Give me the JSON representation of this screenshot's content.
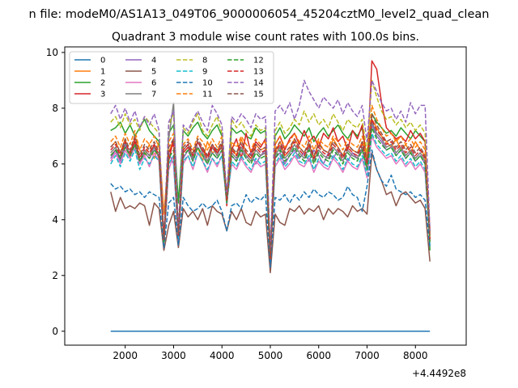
{
  "chart_data": {
    "type": "line",
    "suptitle": "n file: modeM0/AS1A13_049T06_9000006054_45204cztM0_level2_quad_clean",
    "title": "Quadrant 3 module wise count rates with 100.0s bins.",
    "xlabel": "",
    "ylabel": "",
    "x_offset_label": "+4.4492e8",
    "xlim": [
      750,
      9050
    ],
    "ylim": [
      -0.5,
      10.2
    ],
    "x_ticks": [
      2000,
      3000,
      4000,
      5000,
      6000,
      7000,
      8000
    ],
    "x_tick_labels": [
      "2000",
      "3000",
      "4000",
      "5000",
      "6000",
      "7000",
      "8000"
    ],
    "y_ticks": [
      0,
      2,
      4,
      6,
      8,
      10
    ],
    "y_tick_labels": [
      "0",
      "2",
      "4",
      "6",
      "8",
      "10"
    ],
    "grid": false,
    "legend_position": "top-left",
    "legend_columns": 4,
    "x_start": 1700,
    "x_step": 100,
    "series": [
      {
        "name": "0",
        "color": "#1f77b4",
        "dash": "solid",
        "values": [
          0,
          0,
          0,
          0,
          0,
          0,
          0,
          0,
          0,
          0,
          0,
          0,
          0,
          0,
          0,
          0,
          0,
          0,
          0,
          0,
          0,
          0,
          0,
          0,
          0,
          0,
          0,
          0,
          0,
          0,
          0,
          0,
          0,
          0,
          0,
          0,
          0,
          0,
          0,
          0,
          0,
          0,
          0,
          0,
          0,
          0,
          0,
          0,
          0,
          0,
          0,
          0,
          0,
          0,
          0,
          0,
          0,
          0,
          0,
          0,
          0,
          0,
          0,
          0,
          0,
          0,
          0
        ]
      },
      {
        "name": "1",
        "color": "#ff7f0e",
        "dash": "solid",
        "values": [
          6.6,
          6.8,
          6.4,
          6.9,
          6.2,
          7.0,
          6.5,
          6.3,
          6.7,
          6.2,
          6.8,
          4.2,
          6.4,
          6.9,
          3.6,
          6.5,
          6.7,
          6.3,
          6.6,
          6.1,
          6.8,
          6.4,
          6.5,
          6.7,
          4.9,
          6.6,
          6.3,
          6.9,
          6.4,
          6.2,
          6.7,
          6.5,
          6.6,
          2.6,
          6.4,
          6.8,
          6.3,
          6.5,
          6.9,
          6.6,
          6.4,
          6.7,
          6.2,
          6.8,
          6.5,
          6.4,
          6.9,
          6.6,
          6.3,
          6.7,
          6.5,
          6.4,
          6.8,
          6.2,
          7.6,
          7.3,
          7.0,
          6.8,
          6.6,
          6.9,
          6.5,
          6.7,
          6.4,
          6.8,
          6.5,
          6.3,
          3.4
        ]
      },
      {
        "name": "2",
        "color": "#2ca02c",
        "dash": "solid",
        "values": [
          7.2,
          7.3,
          7.5,
          7.1,
          7.4,
          7.0,
          7.3,
          7.6,
          7.2,
          7.0,
          6.8,
          3.2,
          7.1,
          7.4,
          4.6,
          7.2,
          7.0,
          7.3,
          7.5,
          7.1,
          6.9,
          7.2,
          7.4,
          7.0,
          4.7,
          7.3,
          7.1,
          7.2,
          7.0,
          6.9,
          7.3,
          7.1,
          7.2,
          2.8,
          7.0,
          7.3,
          6.9,
          7.1,
          7.4,
          7.2,
          7.0,
          7.3,
          6.8,
          7.1,
          7.3,
          7.0,
          7.2,
          7.4,
          7.1,
          6.9,
          7.2,
          7.0,
          7.3,
          6.1,
          7.8,
          7.5,
          7.3,
          7.1,
          7.2,
          7.0,
          7.3,
          7.1,
          6.9,
          7.2,
          7.0,
          6.8,
          2.9
        ]
      },
      {
        "name": "3",
        "color": "#d62728",
        "dash": "solid",
        "values": [
          6.3,
          6.5,
          6.2,
          6.6,
          6.4,
          6.8,
          6.1,
          6.5,
          6.3,
          6.7,
          6.2,
          3.3,
          6.1,
          6.9,
          3.4,
          6.4,
          6.6,
          6.2,
          6.8,
          6.5,
          6.3,
          6.7,
          6.4,
          6.6,
          4.5,
          6.5,
          6.9,
          6.2,
          7.1,
          6.4,
          6.8,
          6.6,
          6.9,
          2.5,
          6.7,
          7.0,
          6.5,
          6.9,
          7.1,
          6.7,
          7.2,
          6.8,
          7.0,
          6.6,
          7.1,
          6.9,
          7.3,
          6.8,
          7.0,
          6.5,
          7.2,
          6.9,
          7.4,
          6.0,
          9.7,
          9.4,
          8.2,
          7.3,
          7.1,
          6.9,
          7.0,
          6.8,
          7.2,
          6.9,
          7.1,
          6.8,
          3.6
        ]
      },
      {
        "name": "4",
        "color": "#9467bd",
        "dash": "solid",
        "values": [
          6.2,
          6.5,
          6.1,
          6.7,
          6.3,
          6.6,
          6.0,
          6.4,
          6.2,
          6.5,
          6.3,
          3.1,
          6.4,
          6.0,
          3.3,
          6.2,
          6.5,
          6.1,
          6.6,
          6.3,
          6.0,
          6.4,
          6.2,
          6.5,
          4.6,
          6.3,
          6.1,
          6.5,
          6.2,
          6.4,
          6.0,
          6.3,
          6.5,
          2.4,
          6.2,
          6.4,
          6.0,
          6.3,
          6.5,
          6.2,
          6.4,
          6.1,
          6.5,
          6.3,
          6.0,
          6.4,
          6.2,
          6.5,
          6.3,
          6.1,
          6.4,
          6.2,
          6.5,
          5.8,
          7.4,
          7.0,
          6.8,
          6.5,
          6.6,
          6.3,
          6.5,
          6.2,
          6.4,
          6.1,
          6.3,
          6.0,
          3.2
        ]
      },
      {
        "name": "5",
        "color": "#8c564b",
        "dash": "solid",
        "values": [
          5.0,
          4.3,
          4.8,
          4.4,
          4.5,
          4.4,
          4.6,
          4.5,
          3.8,
          4.6,
          4.4,
          2.9,
          3.8,
          4.3,
          3.0,
          4.4,
          4.1,
          4.3,
          4.0,
          4.4,
          3.8,
          4.5,
          4.3,
          4.2,
          3.6,
          4.3,
          4.0,
          4.4,
          3.9,
          3.8,
          4.3,
          4.1,
          4.2,
          2.1,
          4.2,
          3.9,
          3.8,
          4.4,
          4.3,
          4.5,
          4.2,
          4.4,
          4.3,
          4.5,
          4.0,
          4.4,
          4.2,
          4.4,
          4.3,
          4.1,
          4.5,
          4.3,
          4.4,
          4.2,
          6.4,
          5.8,
          5.4,
          4.9,
          5.0,
          4.5,
          4.9,
          5.0,
          4.8,
          4.6,
          4.7,
          4.4,
          2.5
        ]
      },
      {
        "name": "6",
        "color": "#e377c2",
        "dash": "solid",
        "values": [
          6.1,
          6.4,
          6.0,
          6.5,
          6.2,
          6.6,
          6.0,
          6.3,
          5.9,
          6.4,
          6.1,
          3.1,
          5.8,
          6.3,
          3.2,
          6.0,
          6.3,
          5.8,
          6.4,
          6.1,
          5.7,
          6.2,
          5.9,
          6.3,
          4.6,
          6.0,
          5.8,
          6.2,
          5.9,
          5.7,
          6.1,
          5.9,
          6.0,
          2.7,
          5.9,
          6.2,
          5.8,
          6.0,
          6.3,
          6.0,
          5.9,
          6.2,
          5.7,
          6.1,
          5.9,
          5.8,
          6.2,
          6.0,
          5.7,
          6.1,
          5.9,
          5.8,
          6.2,
          5.5,
          7.0,
          6.6,
          6.4,
          6.2,
          6.3,
          6.0,
          6.2,
          5.9,
          6.1,
          5.8,
          6.0,
          5.7,
          3.2
        ]
      },
      {
        "name": "7",
        "color": "#7f7f7f",
        "dash": "solid",
        "values": [
          6.4,
          6.6,
          6.2,
          6.8,
          6.3,
          6.7,
          6.1,
          6.5,
          6.3,
          6.6,
          6.2,
          3.2,
          6.9,
          8.2,
          3.4,
          6.5,
          6.7,
          6.2,
          6.8,
          6.4,
          6.1,
          6.6,
          6.3,
          6.7,
          4.7,
          6.4,
          6.2,
          6.6,
          6.3,
          6.1,
          6.5,
          6.3,
          6.4,
          2.6,
          6.3,
          6.6,
          6.2,
          6.4,
          6.7,
          6.4,
          6.2,
          6.6,
          6.1,
          6.5,
          6.3,
          6.2,
          6.6,
          6.4,
          6.1,
          6.5,
          6.3,
          6.2,
          6.6,
          5.9,
          7.5,
          7.1,
          6.9,
          6.6,
          6.7,
          6.4,
          6.6,
          6.3,
          6.5,
          6.2,
          6.4,
          6.1,
          3.3
        ]
      },
      {
        "name": "8",
        "color": "#bcbd22",
        "dash": "dashed",
        "values": [
          7.5,
          7.7,
          7.3,
          7.8,
          7.4,
          7.6,
          7.2,
          7.7,
          7.5,
          7.3,
          7.1,
          3.3,
          7.4,
          7.8,
          3.6,
          7.3,
          7.1,
          7.5,
          7.8,
          7.2,
          7.0,
          7.4,
          7.7,
          7.1,
          4.8,
          7.6,
          7.3,
          7.5,
          7.2,
          7.0,
          7.4,
          7.2,
          7.3,
          2.8,
          7.2,
          7.5,
          7.1,
          7.3,
          7.6,
          7.4,
          7.9,
          7.5,
          7.8,
          7.4,
          7.6,
          7.3,
          7.8,
          7.5,
          7.2,
          7.6,
          7.4,
          7.3,
          7.6,
          6.4,
          9.0,
          8.4,
          7.9,
          7.6,
          7.7,
          7.4,
          7.6,
          7.3,
          7.5,
          7.2,
          7.4,
          7.1,
          3.4
        ]
      },
      {
        "name": "9",
        "color": "#17becf",
        "dash": "dashed",
        "values": [
          6.0,
          6.3,
          5.9,
          6.4,
          6.1,
          6.5,
          5.8,
          6.2,
          6.0,
          6.3,
          6.1,
          3.2,
          6.0,
          6.3,
          3.3,
          6.1,
          6.3,
          5.9,
          6.4,
          6.1,
          5.8,
          6.2,
          6.0,
          6.3,
          4.6,
          6.1,
          5.9,
          6.3,
          6.0,
          5.8,
          6.2,
          6.0,
          6.1,
          2.5,
          6.0,
          6.3,
          5.9,
          6.1,
          6.4,
          6.1,
          6.0,
          6.3,
          5.8,
          6.2,
          6.0,
          5.9,
          6.3,
          6.1,
          5.8,
          6.2,
          6.0,
          5.9,
          6.3,
          5.6,
          7.1,
          6.7,
          6.5,
          6.3,
          6.4,
          6.1,
          6.3,
          6.0,
          6.2,
          5.9,
          6.1,
          5.8,
          3.1
        ]
      },
      {
        "name": "10",
        "color": "#1f77b4",
        "dash": "dashed",
        "values": [
          5.3,
          5.1,
          5.2,
          5.0,
          5.1,
          4.9,
          5.0,
          4.8,
          5.0,
          4.9,
          4.8,
          3.0,
          4.6,
          4.8,
          3.1,
          4.8,
          4.5,
          4.3,
          4.4,
          4.6,
          4.4,
          4.5,
          4.7,
          4.3,
          3.6,
          4.5,
          4.6,
          4.4,
          4.9,
          4.6,
          4.8,
          4.7,
          4.9,
          2.3,
          4.8,
          4.7,
          4.9,
          4.6,
          4.9,
          4.7,
          5.0,
          4.8,
          5.1,
          4.9,
          4.8,
          5.0,
          4.9,
          4.7,
          4.8,
          5.2,
          4.9,
          4.8,
          4.3,
          5.2,
          6.5,
          5.8,
          5.4,
          5.2,
          5.6,
          5.1,
          5.0,
          4.9,
          5.0,
          4.8,
          4.9,
          4.7,
          3.0
        ]
      },
      {
        "name": "11",
        "color": "#ff7f0e",
        "dash": "dashed",
        "values": [
          6.8,
          7.0,
          6.6,
          7.1,
          6.7,
          7.2,
          6.5,
          6.9,
          6.7,
          7.0,
          6.6,
          3.3,
          6.8,
          7.1,
          3.5,
          6.7,
          6.9,
          6.5,
          7.0,
          6.8,
          6.5,
          6.9,
          6.6,
          7.0,
          4.7,
          6.8,
          6.6,
          7.0,
          6.7,
          6.5,
          6.9,
          6.7,
          6.8,
          2.7,
          6.7,
          7.0,
          6.6,
          6.8,
          7.1,
          6.8,
          6.6,
          7.0,
          6.5,
          6.9,
          6.7,
          6.6,
          7.0,
          6.8,
          6.5,
          6.9,
          6.7,
          6.6,
          7.0,
          6.2,
          8.1,
          7.6,
          7.3,
          7.0,
          7.1,
          6.8,
          7.0,
          6.7,
          6.9,
          6.6,
          6.8,
          6.5,
          3.5
        ]
      },
      {
        "name": "12",
        "color": "#2ca02c",
        "dash": "dashed",
        "values": [
          6.3,
          6.5,
          6.2,
          6.6,
          6.3,
          6.7,
          6.1,
          6.4,
          6.2,
          6.5,
          6.3,
          3.2,
          6.2,
          6.5,
          3.4,
          6.3,
          6.5,
          6.1,
          6.6,
          6.3,
          6.0,
          6.4,
          6.2,
          6.5,
          4.6,
          6.3,
          6.1,
          6.5,
          6.2,
          6.0,
          6.4,
          6.2,
          6.3,
          2.6,
          6.2,
          6.5,
          6.1,
          6.3,
          6.6,
          6.3,
          6.1,
          6.5,
          6.0,
          6.4,
          6.2,
          6.1,
          6.5,
          6.3,
          6.0,
          6.4,
          6.2,
          6.1,
          6.5,
          5.8,
          7.3,
          6.9,
          6.7,
          6.5,
          6.6,
          6.3,
          6.5,
          6.2,
          6.4,
          6.1,
          6.3,
          6.0,
          3.2
        ]
      },
      {
        "name": "13",
        "color": "#d62728",
        "dash": "dashed",
        "values": [
          6.5,
          6.7,
          6.3,
          6.8,
          6.4,
          6.9,
          6.2,
          6.6,
          6.4,
          6.7,
          6.3,
          3.3,
          6.4,
          6.7,
          3.4,
          6.5,
          6.7,
          6.3,
          6.8,
          6.5,
          6.2,
          6.6,
          6.4,
          6.7,
          4.7,
          6.5,
          6.3,
          6.7,
          6.4,
          6.2,
          6.6,
          6.4,
          6.5,
          2.6,
          6.4,
          6.7,
          6.3,
          6.5,
          6.8,
          6.5,
          6.3,
          6.7,
          6.2,
          6.6,
          6.4,
          6.3,
          6.7,
          6.5,
          6.2,
          6.6,
          6.4,
          6.3,
          6.7,
          6.0,
          7.6,
          7.2,
          7.0,
          6.7,
          6.8,
          6.5,
          6.7,
          6.4,
          6.6,
          6.3,
          6.5,
          6.2,
          3.3
        ]
      },
      {
        "name": "14",
        "color": "#9467bd",
        "dash": "dashed",
        "values": [
          7.8,
          8.1,
          7.6,
          8.0,
          7.5,
          7.9,
          7.3,
          7.7,
          7.4,
          7.8,
          7.2,
          3.3,
          7.5,
          7.9,
          3.6,
          7.4,
          7.2,
          7.6,
          7.9,
          7.5,
          7.2,
          8.1,
          7.8,
          7.4,
          4.9,
          7.7,
          7.5,
          7.8,
          7.6,
          7.3,
          7.8,
          7.6,
          7.7,
          2.9,
          7.9,
          8.1,
          7.8,
          8.2,
          7.6,
          8.1,
          9.0,
          8.6,
          8.3,
          8.0,
          8.4,
          8.2,
          8.0,
          8.3,
          7.8,
          8.2,
          7.9,
          7.7,
          8.1,
          6.8,
          9.0,
          8.6,
          8.2,
          7.9,
          8.0,
          7.6,
          7.9,
          7.5,
          8.2,
          7.8,
          8.1,
          8.1,
          3.6
        ]
      },
      {
        "name": "15",
        "color": "#8c564b",
        "dash": "dashed",
        "values": [
          6.6,
          6.8,
          6.4,
          6.9,
          6.5,
          7.0,
          6.3,
          6.7,
          6.5,
          6.8,
          6.4,
          3.3,
          6.6,
          6.9,
          3.5,
          6.6,
          6.8,
          6.4,
          6.9,
          6.6,
          6.3,
          6.7,
          6.5,
          6.8,
          4.8,
          6.6,
          6.4,
          6.8,
          6.5,
          6.3,
          6.7,
          6.5,
          6.6,
          2.7,
          6.5,
          6.8,
          6.4,
          6.6,
          6.9,
          6.6,
          6.4,
          6.8,
          6.3,
          6.7,
          6.5,
          6.4,
          6.8,
          6.6,
          6.3,
          6.7,
          6.5,
          6.4,
          6.8,
          6.1,
          7.8,
          7.4,
          7.1,
          6.8,
          6.9,
          6.6,
          6.8,
          6.5,
          6.7,
          6.4,
          6.6,
          6.3,
          3.4
        ]
      }
    ]
  }
}
